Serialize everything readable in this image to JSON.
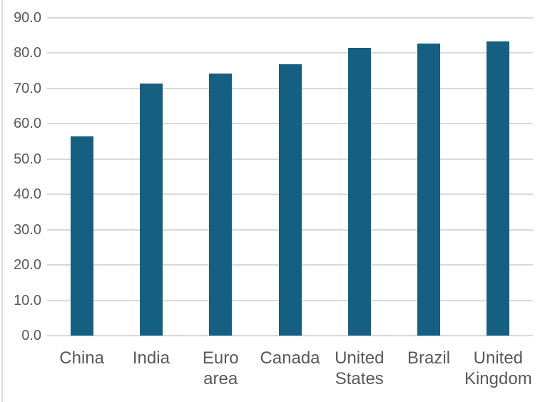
{
  "chart_data": {
    "type": "bar",
    "title": "",
    "xlabel": "",
    "ylabel": "",
    "categories": [
      "China",
      "India",
      "Euro area",
      "Canada",
      "United States",
      "Brazil",
      "United Kingdom"
    ],
    "values": [
      56.4,
      71.3,
      74.2,
      76.9,
      81.4,
      82.6,
      83.2
    ],
    "ylim": [
      0,
      90
    ],
    "ytick_step": 10,
    "ytick_decimals": 1,
    "ytick_labels": [
      "0.0",
      "10.0",
      "20.0",
      "30.0",
      "40.0",
      "50.0",
      "60.0",
      "70.0",
      "80.0",
      "90.0"
    ],
    "grid": true,
    "legend": false,
    "colors": {
      "bar": "#156082",
      "gridline": "#D9D9D9",
      "tick_label": "#595959",
      "background": "#FFFFFF",
      "edge_line": "#DCDCDC"
    }
  }
}
